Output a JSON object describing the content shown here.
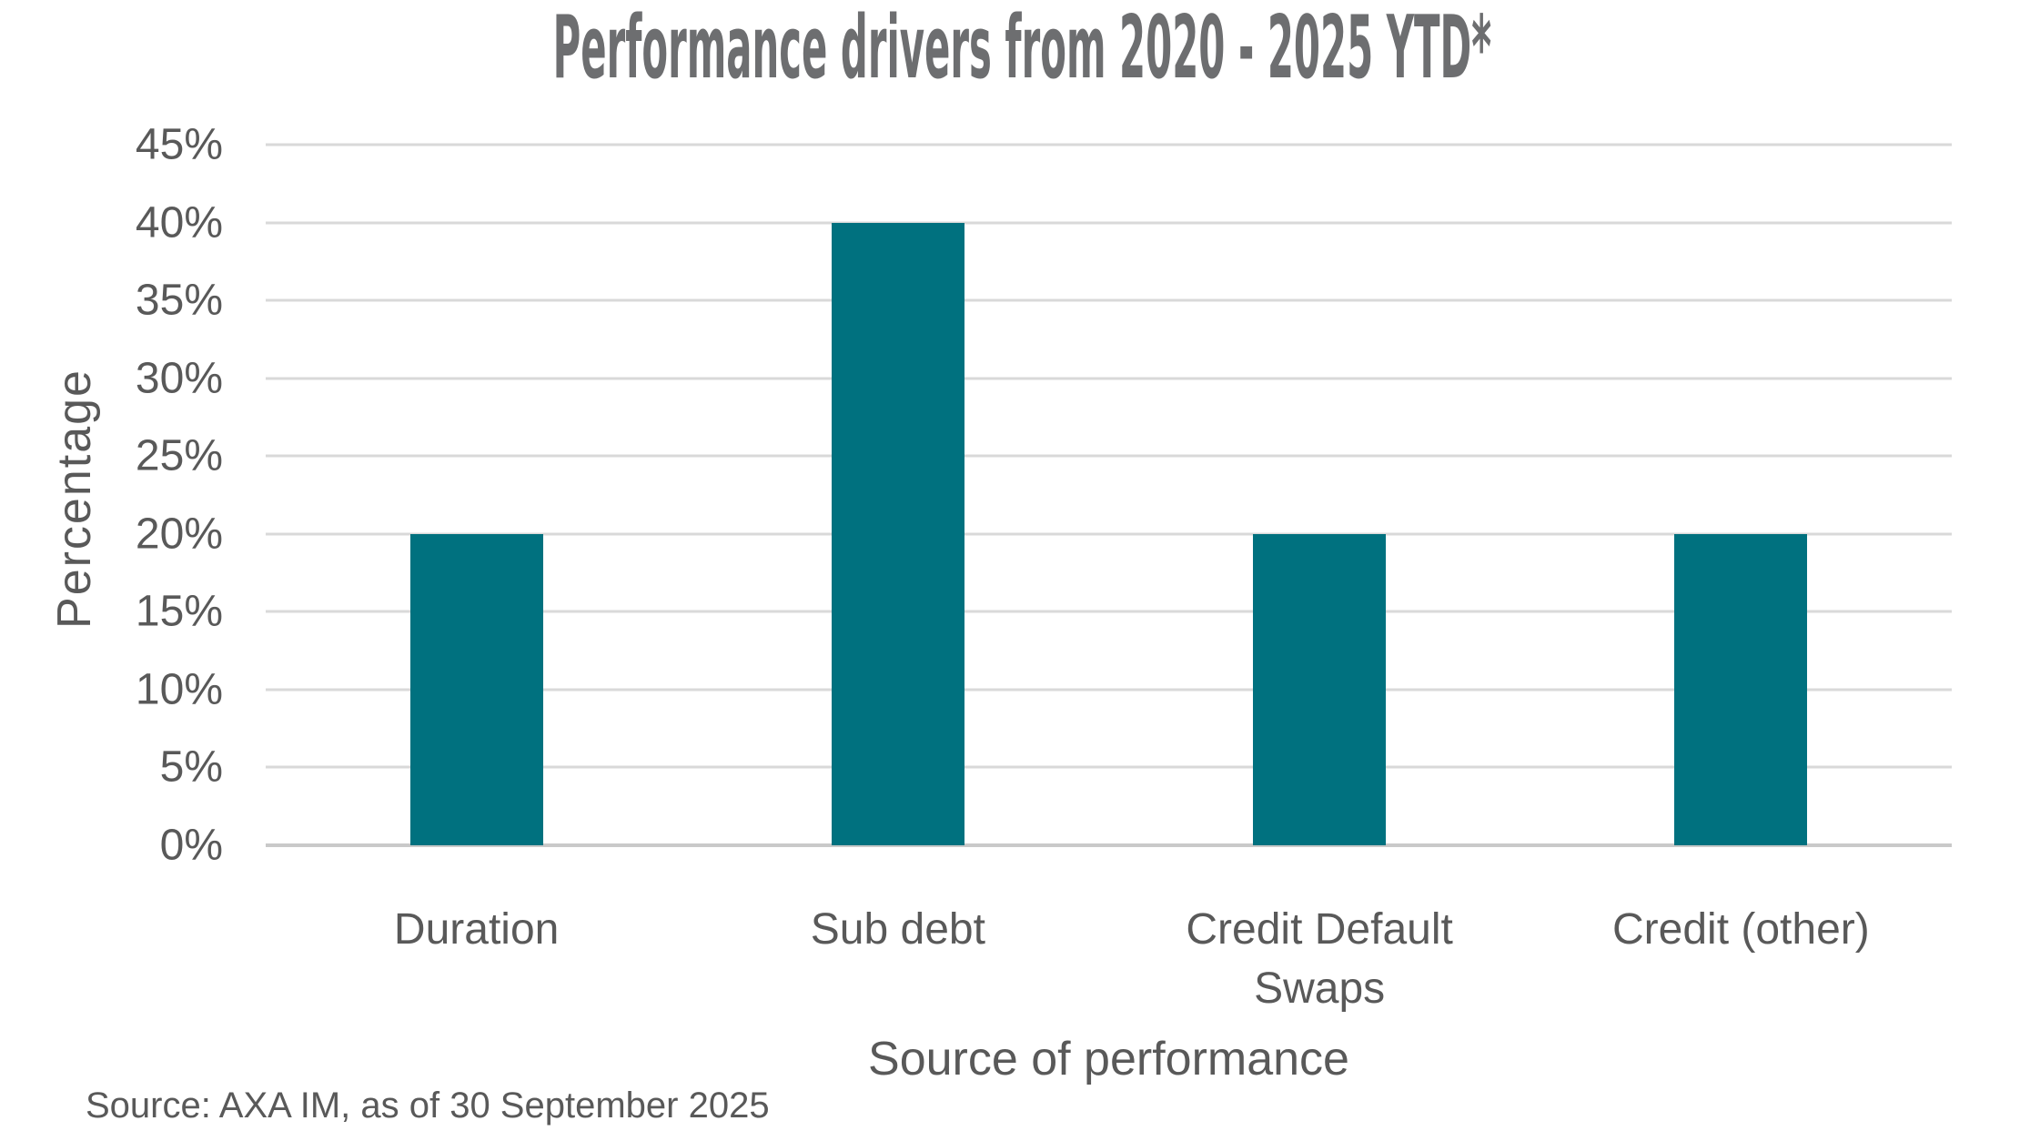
{
  "chart_data": {
    "type": "bar",
    "title": "Performance drivers from 2020 - 2025 YTD*",
    "categories": [
      "Duration",
      "Sub debt",
      "Credit Default Swaps",
      "Credit (other)"
    ],
    "values": [
      20,
      40,
      20,
      20
    ],
    "xlabel": "Source of performance",
    "ylabel": "Percentage",
    "ylim": [
      0,
      45
    ],
    "ytick_step": 5,
    "ytick_labels": [
      "0%",
      "5%",
      "10%",
      "15%",
      "20%",
      "25%",
      "30%",
      "35%",
      "40%",
      "45%"
    ],
    "grid": true,
    "legend_position": "none",
    "source": "Source: AXA IM, as of 30 September 2025",
    "colors": {
      "bar": "#00717F",
      "gridline": "#D9D9D9",
      "baseline": "#C9C9C9",
      "axis_text": "#595959",
      "title_text": "#6D6E70"
    }
  }
}
